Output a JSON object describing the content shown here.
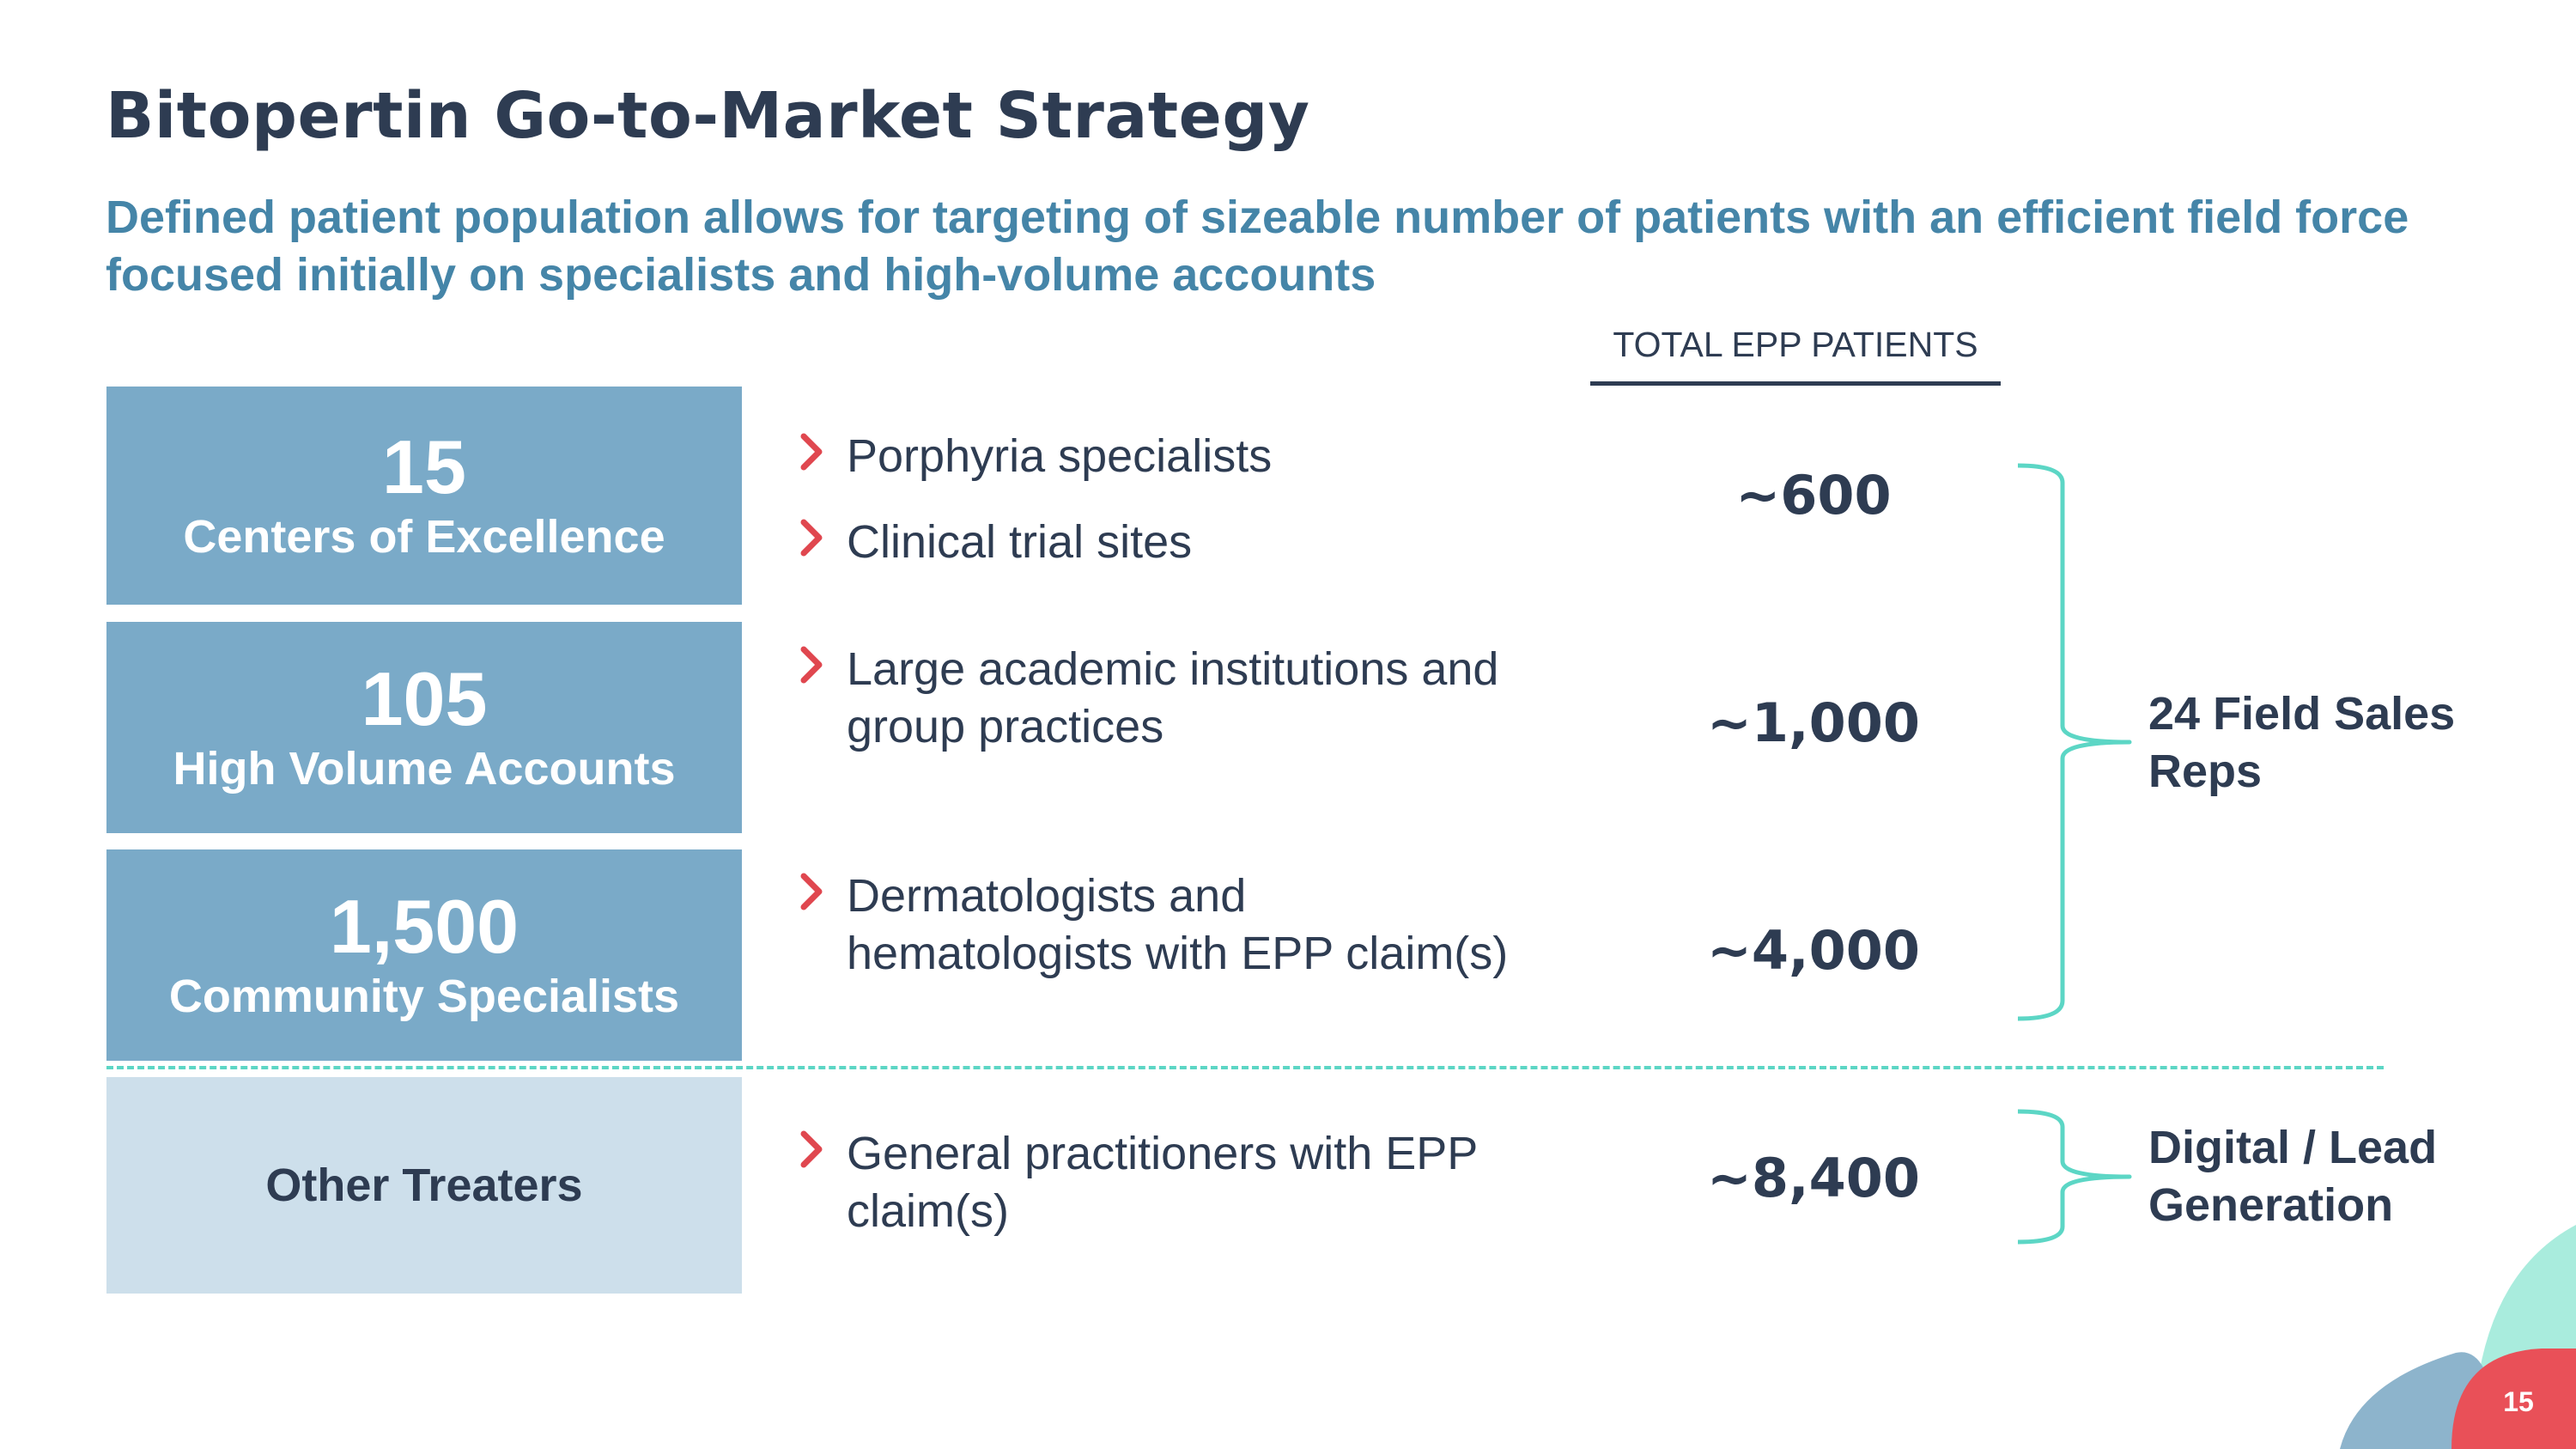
{
  "title": "Bitopertin Go-to-Market Strategy",
  "subtitle": "Defined patient population allows for targeting of sizeable number of patients with an efficient field force focused initially on specialists and high-volume accounts",
  "column_header": "TOTAL EPP PATIENTS",
  "tiers": [
    {
      "number": "15",
      "label": "Centers of Excellence",
      "bullets": [
        "Porphyria specialists",
        "Clinical trial sites"
      ],
      "patients": "~600"
    },
    {
      "number": "105",
      "label": "High Volume Accounts",
      "bullets": [
        "Large academic institutions and\ngroup practices"
      ],
      "patients": "~1,000"
    },
    {
      "number": "1,500",
      "label": "Community Specialists",
      "bullets": [
        "Dermatologists and\nhematologists with EPP claim(s)"
      ],
      "patients": "~4,000"
    },
    {
      "number": "",
      "label": "Other Treaters",
      "bullets": [
        "General practitioners with EPP\nclaim(s)"
      ],
      "patients": "~8,400"
    }
  ],
  "groups": {
    "field_sales": "24 Field Sales\nReps",
    "digital": "Digital / Lead\nGeneration"
  },
  "page_number": "15",
  "colors": {
    "dark_navy": "#2e3c52",
    "subtitle_blue": "#4585a8",
    "tier_box": "#7aaac8",
    "tier_box_light": "#cddfeb",
    "chevron_red": "#e0474f",
    "bracket_teal": "#5cd6c5"
  }
}
